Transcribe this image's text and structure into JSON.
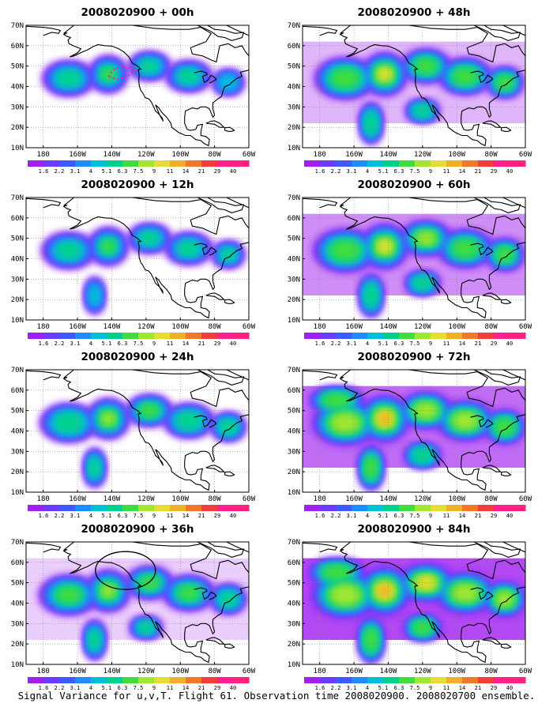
{
  "caption": "Signal Variance for u,v,T. Flight 61. Observation time 2008020900. 2008020700 ensemble.",
  "x_tick_labels": [
    "180",
    "160W",
    "140W",
    "120W",
    "100W",
    "80W",
    "60W"
  ],
  "y_tick_labels": [
    "10N",
    "20N",
    "30N",
    "40N",
    "50N",
    "60N",
    "70N"
  ],
  "colorbar": {
    "labels": [
      "1.6",
      "2.2",
      "3.1",
      "4",
      "5.1",
      "6.3",
      "7.5",
      "9",
      "11",
      "14",
      "21",
      "29",
      "40"
    ],
    "colors": [
      "#a020f0",
      "#6a3cff",
      "#3c5aff",
      "#1e8cff",
      "#00c0d8",
      "#00d28c",
      "#40dc40",
      "#a0e632",
      "#e6dc32",
      "#f0af28",
      "#f07828",
      "#f03c3c",
      "#ff1e8c",
      "#ff2080"
    ]
  },
  "colors": {
    "land_outline": "#000000",
    "grid": "#888888",
    "background": "#ffffff"
  },
  "panels": [
    {
      "title": "2008020900 + 00h",
      "lead": "00h",
      "intensity": 0.45,
      "has_track": true,
      "has_circle": false
    },
    {
      "title": "2008020900 + 48h",
      "lead": "48h",
      "intensity": 0.7,
      "has_track": false,
      "has_circle": false
    },
    {
      "title": "2008020900 + 12h",
      "lead": "12h",
      "intensity": 0.5,
      "has_track": false,
      "has_circle": false
    },
    {
      "title": "2008020900 + 60h",
      "lead": "60h",
      "intensity": 0.78,
      "has_track": false,
      "has_circle": false
    },
    {
      "title": "2008020900 + 24h",
      "lead": "24h",
      "intensity": 0.6,
      "has_track": false,
      "has_circle": false
    },
    {
      "title": "2008020900 + 72h",
      "lead": "72h",
      "intensity": 0.85,
      "has_track": false,
      "has_circle": false
    },
    {
      "title": "2008020900 + 36h",
      "lead": "36h",
      "intensity": 0.65,
      "has_track": false,
      "has_circle": true
    },
    {
      "title": "2008020900 + 84h",
      "lead": "84h",
      "intensity": 0.92,
      "has_track": false,
      "has_circle": false
    }
  ]
}
